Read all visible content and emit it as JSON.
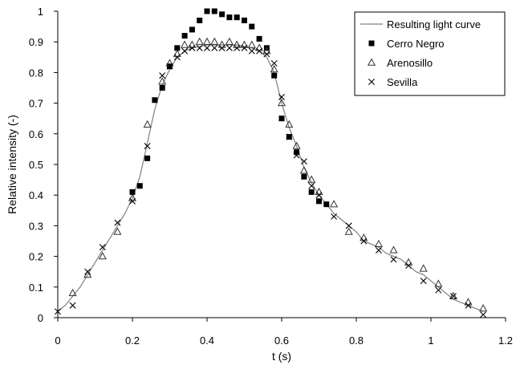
{
  "chart_data": {
    "type": "scatter",
    "title": "",
    "xlabel": "t (s)",
    "ylabel": "Relative intensity (-)",
    "xlim": [
      0,
      1.2
    ],
    "ylim": [
      0,
      1
    ],
    "x_ticks": [
      "0",
      "0.2",
      "0.4",
      "0.6",
      "0.8",
      "1",
      "1.2"
    ],
    "y_ticks": [
      "0",
      "0.1",
      "0.2",
      "0.3",
      "0.4",
      "0.5",
      "0.6",
      "0.7",
      "0.8",
      "0.9",
      "1"
    ],
    "grid": false,
    "legend_position": "top-right",
    "series": [
      {
        "name": "Resulting light curve",
        "kind": "line",
        "color": "#808080",
        "points": [
          [
            0,
            0.02
          ],
          [
            0.02,
            0.04
          ],
          [
            0.04,
            0.07
          ],
          [
            0.06,
            0.1
          ],
          [
            0.08,
            0.14
          ],
          [
            0.1,
            0.18
          ],
          [
            0.12,
            0.22
          ],
          [
            0.14,
            0.26
          ],
          [
            0.16,
            0.3
          ],
          [
            0.18,
            0.34
          ],
          [
            0.2,
            0.39
          ],
          [
            0.22,
            0.46
          ],
          [
            0.24,
            0.57
          ],
          [
            0.26,
            0.68
          ],
          [
            0.28,
            0.76
          ],
          [
            0.3,
            0.81
          ],
          [
            0.32,
            0.85
          ],
          [
            0.34,
            0.87
          ],
          [
            0.36,
            0.88
          ],
          [
            0.4,
            0.89
          ],
          [
            0.44,
            0.89
          ],
          [
            0.48,
            0.89
          ],
          [
            0.52,
            0.88
          ],
          [
            0.54,
            0.87
          ],
          [
            0.56,
            0.85
          ],
          [
            0.58,
            0.8
          ],
          [
            0.6,
            0.7
          ],
          [
            0.62,
            0.62
          ],
          [
            0.64,
            0.56
          ],
          [
            0.66,
            0.49
          ],
          [
            0.68,
            0.44
          ],
          [
            0.7,
            0.4
          ],
          [
            0.72,
            0.37
          ],
          [
            0.74,
            0.34
          ],
          [
            0.76,
            0.32
          ],
          [
            0.78,
            0.3
          ],
          [
            0.8,
            0.28
          ],
          [
            0.82,
            0.25
          ],
          [
            0.84,
            0.24
          ],
          [
            0.86,
            0.23
          ],
          [
            0.88,
            0.21
          ],
          [
            0.9,
            0.2
          ],
          [
            0.92,
            0.19
          ],
          [
            0.94,
            0.17
          ],
          [
            0.96,
            0.15
          ],
          [
            0.98,
            0.14
          ],
          [
            1.0,
            0.12
          ],
          [
            1.02,
            0.1
          ],
          [
            1.04,
            0.08
          ],
          [
            1.06,
            0.06
          ],
          [
            1.08,
            0.05
          ],
          [
            1.1,
            0.04
          ],
          [
            1.12,
            0.03
          ],
          [
            1.14,
            0.02
          ]
        ]
      },
      {
        "name": "Cerro Negro",
        "kind": "marker",
        "marker": "square",
        "points": [
          [
            0.2,
            0.41
          ],
          [
            0.22,
            0.43
          ],
          [
            0.24,
            0.52
          ],
          [
            0.26,
            0.71
          ],
          [
            0.28,
            0.75
          ],
          [
            0.3,
            0.82
          ],
          [
            0.32,
            0.88
          ],
          [
            0.34,
            0.92
          ],
          [
            0.36,
            0.94
          ],
          [
            0.38,
            0.97
          ],
          [
            0.4,
            1.0
          ],
          [
            0.42,
            1.0
          ],
          [
            0.44,
            0.99
          ],
          [
            0.46,
            0.98
          ],
          [
            0.48,
            0.98
          ],
          [
            0.5,
            0.97
          ],
          [
            0.52,
            0.95
          ],
          [
            0.54,
            0.91
          ],
          [
            0.56,
            0.88
          ],
          [
            0.58,
            0.79
          ],
          [
            0.6,
            0.65
          ],
          [
            0.62,
            0.59
          ],
          [
            0.64,
            0.54
          ],
          [
            0.66,
            0.46
          ],
          [
            0.68,
            0.41
          ],
          [
            0.7,
            0.38
          ],
          [
            0.72,
            0.37
          ]
        ]
      },
      {
        "name": "Arenosillo",
        "kind": "marker",
        "marker": "triangle",
        "points": [
          [
            0.04,
            0.08
          ],
          [
            0.08,
            0.14
          ],
          [
            0.12,
            0.2
          ],
          [
            0.16,
            0.28
          ],
          [
            0.2,
            0.39
          ],
          [
            0.24,
            0.63
          ],
          [
            0.28,
            0.77
          ],
          [
            0.3,
            0.83
          ],
          [
            0.32,
            0.86
          ],
          [
            0.34,
            0.89
          ],
          [
            0.36,
            0.89
          ],
          [
            0.38,
            0.9
          ],
          [
            0.4,
            0.9
          ],
          [
            0.42,
            0.9
          ],
          [
            0.44,
            0.89
          ],
          [
            0.46,
            0.9
          ],
          [
            0.48,
            0.89
          ],
          [
            0.5,
            0.89
          ],
          [
            0.52,
            0.89
          ],
          [
            0.54,
            0.88
          ],
          [
            0.56,
            0.87
          ],
          [
            0.58,
            0.81
          ],
          [
            0.6,
            0.7
          ],
          [
            0.62,
            0.63
          ],
          [
            0.64,
            0.56
          ],
          [
            0.66,
            0.48
          ],
          [
            0.68,
            0.45
          ],
          [
            0.7,
            0.41
          ],
          [
            0.74,
            0.37
          ],
          [
            0.78,
            0.28
          ],
          [
            0.82,
            0.26
          ],
          [
            0.86,
            0.24
          ],
          [
            0.9,
            0.22
          ],
          [
            0.94,
            0.18
          ],
          [
            0.98,
            0.16
          ],
          [
            1.02,
            0.11
          ],
          [
            1.06,
            0.07
          ],
          [
            1.1,
            0.05
          ],
          [
            1.14,
            0.03
          ]
        ]
      },
      {
        "name": "Sevilla",
        "kind": "marker",
        "marker": "cross",
        "points": [
          [
            0,
            0.02
          ],
          [
            0.04,
            0.04
          ],
          [
            0.08,
            0.15
          ],
          [
            0.12,
            0.23
          ],
          [
            0.16,
            0.31
          ],
          [
            0.2,
            0.38
          ],
          [
            0.24,
            0.56
          ],
          [
            0.28,
            0.79
          ],
          [
            0.3,
            0.82
          ],
          [
            0.32,
            0.85
          ],
          [
            0.34,
            0.87
          ],
          [
            0.36,
            0.88
          ],
          [
            0.38,
            0.88
          ],
          [
            0.4,
            0.88
          ],
          [
            0.42,
            0.88
          ],
          [
            0.44,
            0.88
          ],
          [
            0.46,
            0.88
          ],
          [
            0.48,
            0.88
          ],
          [
            0.5,
            0.88
          ],
          [
            0.52,
            0.87
          ],
          [
            0.54,
            0.87
          ],
          [
            0.56,
            0.86
          ],
          [
            0.58,
            0.83
          ],
          [
            0.6,
            0.72
          ],
          [
            0.62,
            0.59
          ],
          [
            0.64,
            0.53
          ],
          [
            0.66,
            0.51
          ],
          [
            0.68,
            0.43
          ],
          [
            0.7,
            0.4
          ],
          [
            0.74,
            0.33
          ],
          [
            0.78,
            0.3
          ],
          [
            0.82,
            0.25
          ],
          [
            0.86,
            0.22
          ],
          [
            0.9,
            0.19
          ],
          [
            0.94,
            0.17
          ],
          [
            0.98,
            0.12
          ],
          [
            1.02,
            0.09
          ],
          [
            1.06,
            0.07
          ],
          [
            1.1,
            0.04
          ],
          [
            1.14,
            0.01
          ]
        ]
      }
    ]
  }
}
